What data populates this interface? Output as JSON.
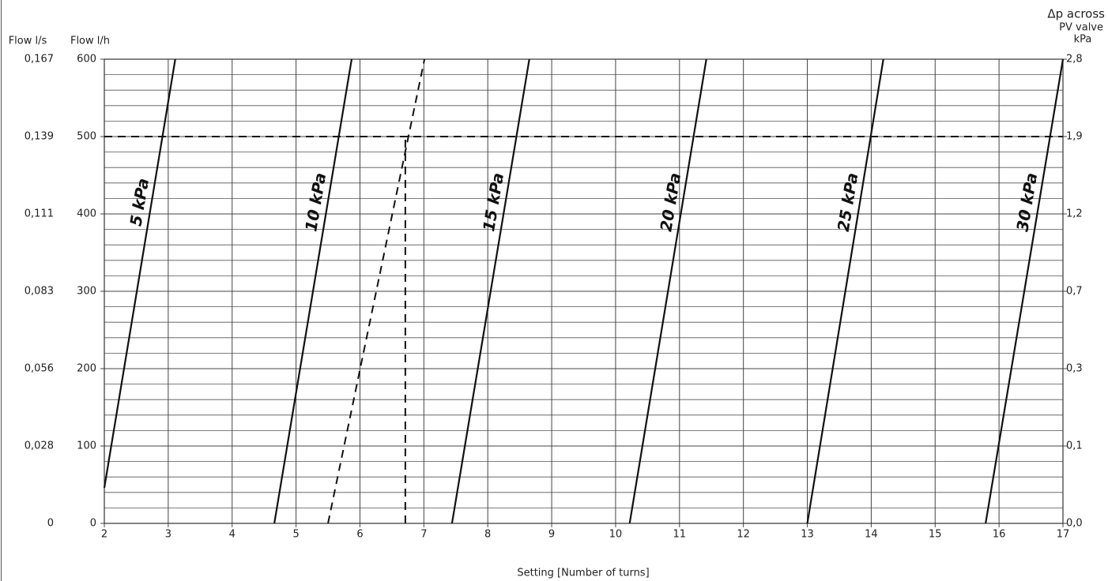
{
  "chart_data": {
    "type": "line",
    "xlabel": "Setting [Number of turns]",
    "ylabel": "Flow l/h",
    "ylabel_ls": "Flow l/s",
    "y2label": [
      "Δp across",
      "PV valve",
      "kPa"
    ],
    "xlim": [
      2,
      17
    ],
    "xticks": [
      2,
      3,
      4,
      5,
      6,
      7,
      8,
      9,
      10,
      11,
      12,
      13,
      14,
      15,
      16,
      17
    ],
    "ylim": [
      0,
      600
    ],
    "yticks": [
      0,
      100,
      200,
      300,
      400,
      500,
      600
    ],
    "y_minor_ticks": [
      20,
      40,
      60,
      80,
      120,
      140,
      160,
      180,
      220,
      240,
      260,
      280,
      320,
      340,
      360,
      380,
      420,
      440,
      460,
      480,
      520,
      540,
      560,
      580
    ],
    "y_ls_ticks": [
      {
        "value": 0,
        "label": "0"
      },
      {
        "value": 0.028,
        "label": "0,028"
      },
      {
        "value": 0.056,
        "label": "0,056"
      },
      {
        "value": 0.083,
        "label": "0,083"
      },
      {
        "value": 0.111,
        "label": "0,111"
      },
      {
        "value": 0.139,
        "label": "0,139"
      },
      {
        "value": 0.167,
        "label": "0,167"
      }
    ],
    "y2ticks": [
      {
        "value": 0.0,
        "label": "0,0"
      },
      {
        "value": 0.1,
        "label": "0,1"
      },
      {
        "value": 0.3,
        "label": "0,3"
      },
      {
        "value": 0.7,
        "label": "0,7"
      },
      {
        "value": 1.2,
        "label": "1,2"
      },
      {
        "value": 1.9,
        "label": "1,9"
      },
      {
        "value": 2.8,
        "label": "2,8"
      }
    ],
    "grid": true,
    "color": "#111111",
    "series": [
      {
        "name": "5 kPa",
        "x": [
          2,
          3.11
        ],
        "values": [
          46,
          600
        ],
        "style": "solid"
      },
      {
        "name": "10 kPa",
        "x": [
          4.66,
          5.87
        ],
        "values": [
          0,
          600
        ],
        "style": "solid"
      },
      {
        "name": "15 kPa",
        "x": [
          7.44,
          8.65
        ],
        "values": [
          0,
          600
        ],
        "style": "solid"
      },
      {
        "name": "20 kPa",
        "x": [
          10.22,
          11.42
        ],
        "values": [
          0,
          600
        ],
        "style": "solid"
      },
      {
        "name": "25 kPa",
        "x": [
          13.0,
          14.19
        ],
        "values": [
          0,
          600
        ],
        "style": "solid"
      },
      {
        "name": "30 kPa",
        "x": [
          15.79,
          17.0
        ],
        "values": [
          0,
          600
        ],
        "style": "solid"
      },
      {
        "x": [
          5.5,
          7.01
        ],
        "values": [
          0,
          600
        ],
        "style": "dashed"
      },
      {
        "x": [
          6.71,
          6.71
        ],
        "values": [
          0,
          500
        ],
        "style": "dashed"
      },
      {
        "x": [
          2,
          17
        ],
        "values": [
          500,
          500
        ],
        "style": "dashed"
      }
    ]
  }
}
